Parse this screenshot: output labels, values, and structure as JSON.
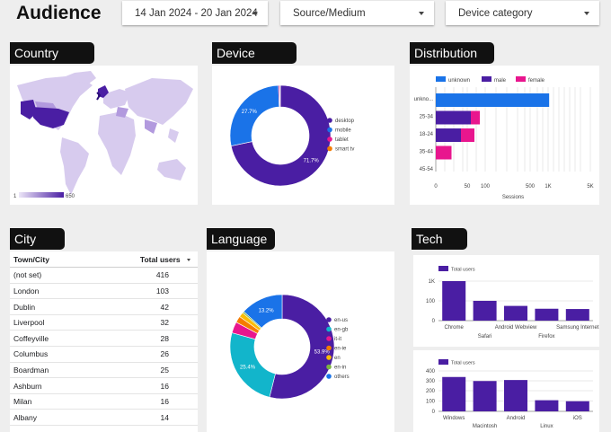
{
  "page": {
    "title": "Audience"
  },
  "filters": {
    "date_range": "14 Jan 2024 - 20 Jan 2024",
    "source": "Source/Medium",
    "device": "Device category"
  },
  "colors": {
    "purple": "#4a1ea3",
    "blue": "#1a73e8",
    "pink": "#e8168e",
    "orange": "#f57c00",
    "yellow": "#fbbc04",
    "green": "#7cb342",
    "cyan": "#12b5cb",
    "map_light": "#d7cbee"
  },
  "sections": {
    "country": "Country",
    "device": "Device",
    "distribution": "Distribution",
    "city": "City",
    "language": "Language",
    "tech": "Tech"
  },
  "country_map": {
    "legend_min": "1",
    "legend_max": "650"
  },
  "city_table": {
    "columns": [
      "Town/City",
      "Total users"
    ],
    "rows": [
      [
        "(not set)",
        "416"
      ],
      [
        "London",
        "103"
      ],
      [
        "Dublin",
        "42"
      ],
      [
        "Liverpool",
        "32"
      ],
      [
        "Coffeyville",
        "28"
      ],
      [
        "Columbus",
        "26"
      ],
      [
        "Boardman",
        "25"
      ],
      [
        "Ashburn",
        "16"
      ],
      [
        "Milan",
        "16"
      ],
      [
        "Albany",
        "14"
      ]
    ]
  },
  "chart_data": [
    {
      "id": "device",
      "type": "pie",
      "donut": true,
      "categories": [
        "desktop",
        "mobile",
        "tablet",
        "smart tv"
      ],
      "values": [
        71.7,
        27.7,
        0.4,
        0.2
      ],
      "data_labels": [
        "71.7%",
        "27.7%",
        "",
        ""
      ],
      "colors": [
        "#4a1ea3",
        "#1a73e8",
        "#e8168e",
        "#f57c00"
      ],
      "legend": "right"
    },
    {
      "id": "distribution",
      "type": "bar",
      "orientation": "horizontal",
      "stacked": true,
      "categories": [
        "unkno...",
        "25-34",
        "18-24",
        "35-44",
        "45-54"
      ],
      "series": [
        {
          "name": "unknown",
          "color": "#1a73e8",
          "values": [
            1100,
            0,
            0,
            0,
            0
          ]
        },
        {
          "name": "male",
          "color": "#4a1ea3",
          "values": [
            0,
            60,
            40,
            0,
            0
          ]
        },
        {
          "name": "female",
          "color": "#e8168e",
          "values": [
            0,
            25,
            30,
            25,
            0
          ]
        }
      ],
      "x_scale": "log",
      "x_ticks": [
        "0",
        "50",
        "100",
        "500",
        "1K",
        "5K"
      ],
      "xlabel": "Sessions",
      "legend": "top"
    },
    {
      "id": "language",
      "type": "pie",
      "donut": true,
      "categories": [
        "en-us",
        "en-gb",
        "it-it",
        "en-ie",
        "en",
        "en-in",
        "others"
      ],
      "values": [
        53.9,
        25.4,
        3.5,
        2,
        1.5,
        0.5,
        13.2
      ],
      "data_labels": [
        "53.9%",
        "25.4%",
        "",
        "",
        "",
        "",
        "13.2%"
      ],
      "colors": [
        "#4a1ea3",
        "#12b5cb",
        "#e8168e",
        "#f57c00",
        "#fbbc04",
        "#7cb342",
        "#1a73e8"
      ],
      "legend": "right"
    },
    {
      "id": "tech_browser",
      "type": "bar",
      "categories": [
        "Chrome",
        "Safari",
        "Android Webview",
        "Firefox",
        "Samsung Internet"
      ],
      "series": [
        {
          "name": "Total users",
          "values": [
            1000,
            100,
            30,
            15,
            14
          ]
        }
      ],
      "y_scale": "log",
      "y_ticks": [
        "0",
        "100",
        "1K"
      ],
      "legend": "top-left"
    },
    {
      "id": "tech_os",
      "type": "bar",
      "categories": [
        "Windows",
        "Macintosh",
        "Android",
        "Linux",
        "iOS"
      ],
      "series": [
        {
          "name": "Total users",
          "values": [
            340,
            300,
            310,
            110,
            100
          ]
        }
      ],
      "y_ticks": [
        "0",
        "100",
        "200",
        "300",
        "400"
      ],
      "ylim": [
        0,
        450
      ],
      "legend": "top-left"
    }
  ]
}
